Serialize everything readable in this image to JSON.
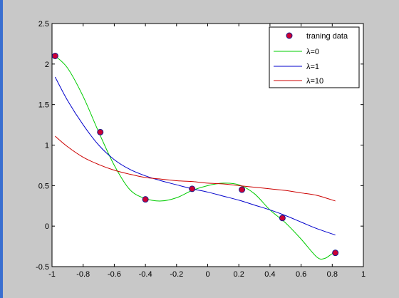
{
  "chart_data": {
    "type": "line",
    "title": "",
    "xlabel": "",
    "ylabel": "",
    "xlim": [
      -1,
      1
    ],
    "ylim": [
      -0.5,
      2.5
    ],
    "xticks": [
      "-1",
      "-0.8",
      "-0.6",
      "-0.4",
      "-0.2",
      "0",
      "0.2",
      "0.4",
      "0.6",
      "0.8",
      "1"
    ],
    "yticks": [
      "-0.5",
      "0",
      "0.5",
      "1",
      "1.5",
      "2",
      "2.5"
    ],
    "grid": false,
    "legend_position": "top-right",
    "series": [
      {
        "name": "traning data",
        "kind": "scatter",
        "color": "#cc0033",
        "x": [
          -0.98,
          -0.69,
          -0.4,
          -0.1,
          0.22,
          0.48,
          0.82
        ],
        "y": [
          2.1,
          1.16,
          0.33,
          0.46,
          0.45,
          0.1,
          -0.33
        ]
      },
      {
        "name": "λ=0",
        "kind": "line",
        "color": "#00cc00",
        "x": [
          -0.98,
          -0.9,
          -0.8,
          -0.7,
          -0.6,
          -0.5,
          -0.4,
          -0.3,
          -0.2,
          -0.1,
          0.0,
          0.1,
          0.2,
          0.3,
          0.4,
          0.5,
          0.6,
          0.7,
          0.75,
          0.8,
          0.82
        ],
        "y": [
          2.1,
          1.95,
          1.6,
          1.16,
          0.75,
          0.45,
          0.34,
          0.31,
          0.35,
          0.44,
          0.5,
          0.53,
          0.51,
          0.4,
          0.2,
          0.04,
          -0.16,
          -0.38,
          -0.4,
          -0.34,
          -0.33
        ]
      },
      {
        "name": "λ=1",
        "kind": "line",
        "color": "#0000cc",
        "x": [
          -0.98,
          -0.9,
          -0.8,
          -0.7,
          -0.6,
          -0.5,
          -0.4,
          -0.3,
          -0.2,
          -0.1,
          0.0,
          0.1,
          0.2,
          0.3,
          0.4,
          0.5,
          0.6,
          0.7,
          0.82
        ],
        "y": [
          1.84,
          1.55,
          1.25,
          1.0,
          0.82,
          0.7,
          0.62,
          0.56,
          0.51,
          0.46,
          0.42,
          0.37,
          0.32,
          0.26,
          0.2,
          0.13,
          0.05,
          -0.03,
          -0.11
        ]
      },
      {
        "name": "λ=10",
        "kind": "line",
        "color": "#cc0000",
        "x": [
          -0.98,
          -0.9,
          -0.8,
          -0.7,
          -0.6,
          -0.5,
          -0.4,
          -0.3,
          -0.2,
          -0.1,
          0.0,
          0.1,
          0.2,
          0.3,
          0.4,
          0.5,
          0.6,
          0.7,
          0.82
        ],
        "y": [
          1.11,
          0.98,
          0.85,
          0.76,
          0.69,
          0.64,
          0.6,
          0.58,
          0.56,
          0.55,
          0.53,
          0.52,
          0.5,
          0.48,
          0.46,
          0.44,
          0.41,
          0.38,
          0.31
        ]
      }
    ]
  }
}
